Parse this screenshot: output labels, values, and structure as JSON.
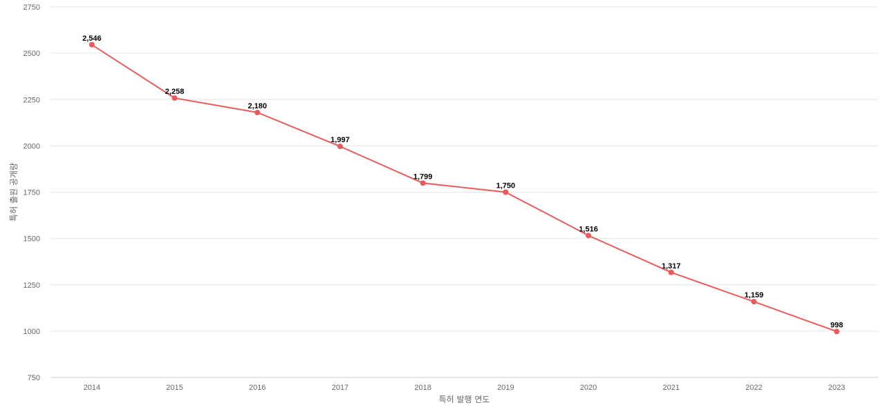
{
  "chart_data": {
    "type": "line",
    "title": "",
    "xlabel": "특허 발행 연도",
    "ylabel": "특허 출원 공개량",
    "categories": [
      "2014",
      "2015",
      "2016",
      "2017",
      "2018",
      "2019",
      "2020",
      "2021",
      "2022",
      "2023"
    ],
    "series": [
      {
        "values": [
          2546,
          2258,
          2180,
          1997,
          1799,
          1750,
          1516,
          1317,
          1159,
          998
        ],
        "labels": [
          "2,546",
          "2,258",
          "2,180",
          "1,997",
          "1,799",
          "1,750",
          "1,516",
          "1,317",
          "1,159",
          "998"
        ],
        "color": "#eb5a5a"
      }
    ],
    "yticks": [
      "750",
      "1000",
      "1250",
      "1500",
      "1750",
      "2000",
      "2250",
      "2500",
      "2750"
    ],
    "ylim": [
      750,
      2750
    ],
    "grid": true,
    "legend": "none"
  }
}
